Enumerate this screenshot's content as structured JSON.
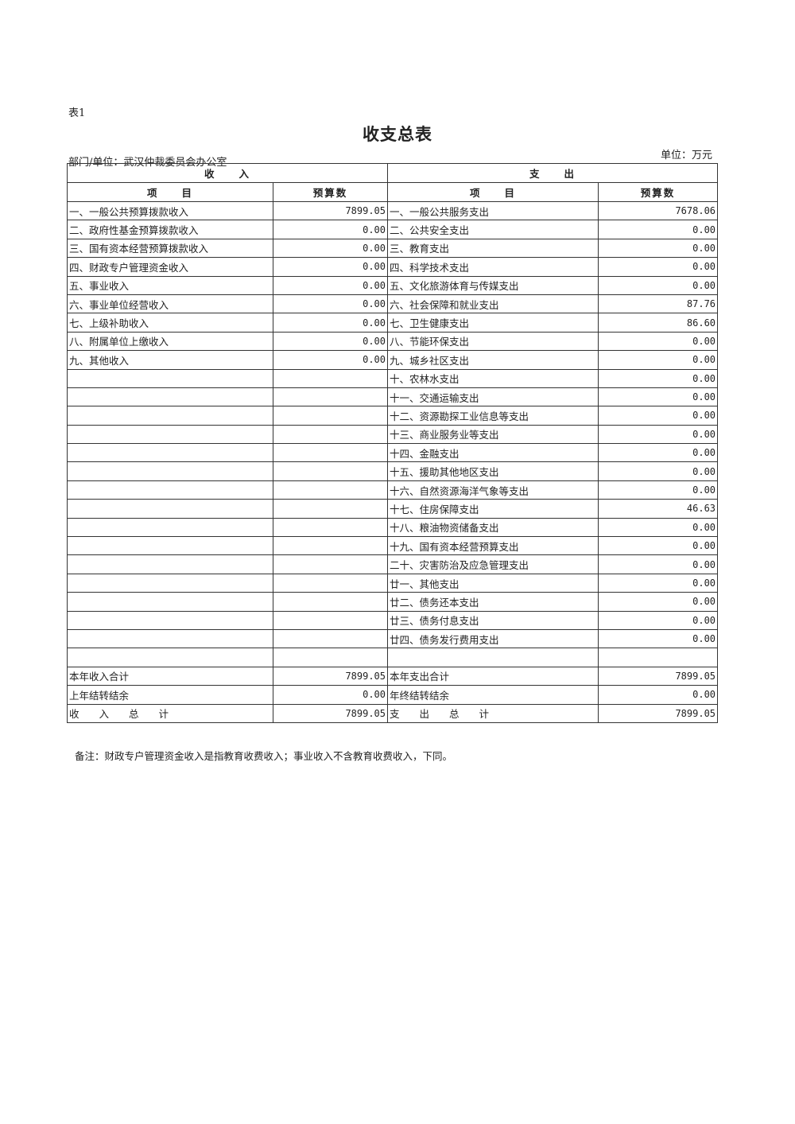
{
  "table_no": "表1",
  "title": "收支总表",
  "unit": "单位：万元",
  "dept": "部门/单位：武汉仲裁委员会办公室",
  "headers": {
    "income": "收　　入",
    "expense": "支　　出",
    "item": "项　　目",
    "amount": "预算数"
  },
  "income": [
    {
      "item": "一、一般公共预算拨款收入",
      "amount": "7899.05"
    },
    {
      "item": "二、政府性基金预算拨款收入",
      "amount": "0.00"
    },
    {
      "item": "三、国有资本经营预算拨款收入",
      "amount": "0.00"
    },
    {
      "item": "四、财政专户管理资金收入",
      "amount": "0.00"
    },
    {
      "item": "五、事业收入",
      "amount": "0.00"
    },
    {
      "item": "六、事业单位经营收入",
      "amount": "0.00"
    },
    {
      "item": "七、上级补助收入",
      "amount": "0.00"
    },
    {
      "item": "八、附属单位上缴收入",
      "amount": "0.00"
    },
    {
      "item": "九、其他收入",
      "amount": "0.00"
    }
  ],
  "expense": [
    {
      "item": "一、一般公共服务支出",
      "amount": "7678.06"
    },
    {
      "item": "二、公共安全支出",
      "amount": "0.00"
    },
    {
      "item": "三、教育支出",
      "amount": "0.00"
    },
    {
      "item": "四、科学技术支出",
      "amount": "0.00"
    },
    {
      "item": "五、文化旅游体育与传媒支出",
      "amount": "0.00"
    },
    {
      "item": "六、社会保障和就业支出",
      "amount": "87.76"
    },
    {
      "item": "七、卫生健康支出",
      "amount": "86.60"
    },
    {
      "item": "八、节能环保支出",
      "amount": "0.00"
    },
    {
      "item": "九、城乡社区支出",
      "amount": "0.00"
    },
    {
      "item": "十、农林水支出",
      "amount": "0.00"
    },
    {
      "item": "十一、交通运输支出",
      "amount": "0.00"
    },
    {
      "item": "十二、资源勘探工业信息等支出",
      "amount": "0.00"
    },
    {
      "item": "十三、商业服务业等支出",
      "amount": "0.00"
    },
    {
      "item": "十四、金融支出",
      "amount": "0.00"
    },
    {
      "item": "十五、援助其他地区支出",
      "amount": "0.00"
    },
    {
      "item": "十六、自然资源海洋气象等支出",
      "amount": "0.00"
    },
    {
      "item": "十七、住房保障支出",
      "amount": "46.63"
    },
    {
      "item": "十八、粮油物资储备支出",
      "amount": "0.00"
    },
    {
      "item": "十九、国有资本经营预算支出",
      "amount": "0.00"
    },
    {
      "item": "二十、灾害防治及应急管理支出",
      "amount": "0.00"
    },
    {
      "item": "廿一、其他支出",
      "amount": "0.00"
    },
    {
      "item": "廿二、债务还本支出",
      "amount": "0.00"
    },
    {
      "item": "廿三、债务付息支出",
      "amount": "0.00"
    },
    {
      "item": "廿四、债务发行费用支出",
      "amount": "0.00"
    }
  ],
  "totals": [
    {
      "income_item": "本年收入合计",
      "income_amount": "7899.05",
      "expense_item": "本年支出合计",
      "expense_amount": "7899.05"
    },
    {
      "income_item": "上年结转结余",
      "income_amount": "0.00",
      "expense_item": "年终结转结余",
      "expense_amount": "0.00"
    },
    {
      "income_item": "收　　入　　总　　计",
      "income_amount": "7899.05",
      "expense_item": "支　　出　　总　　计",
      "expense_amount": "7899.05"
    }
  ],
  "note": "备注：财政专户管理资金收入是指教育收费收入；事业收入不含教育收费收入，下同。"
}
